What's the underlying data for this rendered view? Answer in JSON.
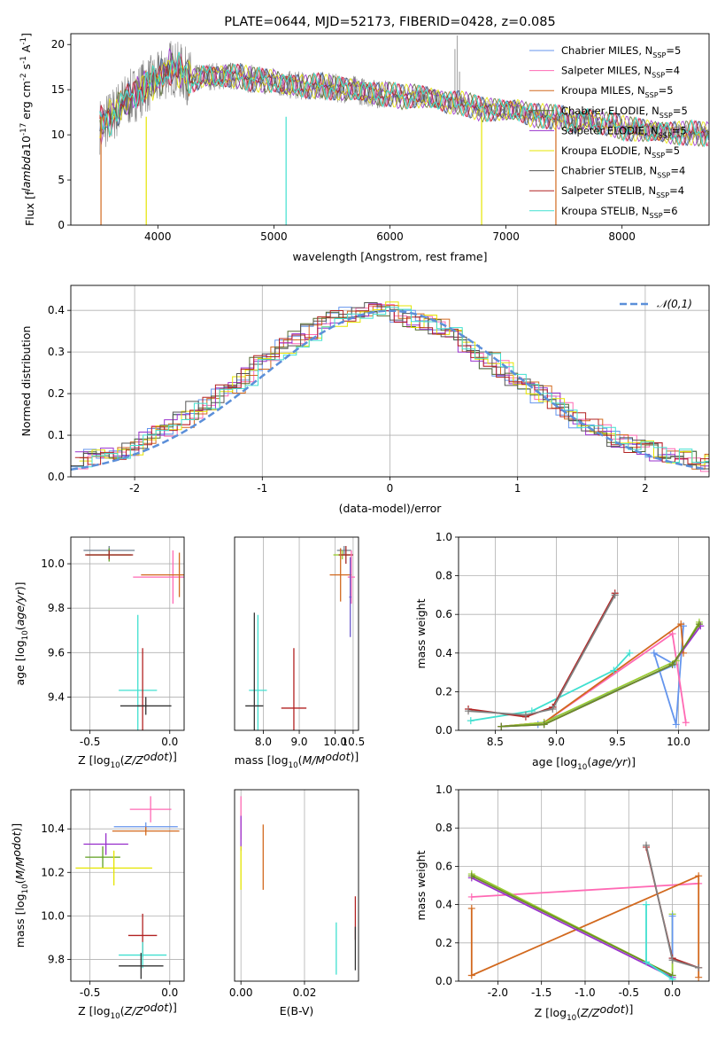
{
  "chart_data": [
    {
      "type": "line",
      "title": "PLATE=0644, MJD=52173, FIBERID=0428, z=0.085",
      "xlabel": "wavelength [Angstrom, rest frame]",
      "ylabel": "Flux [f$_\\lambda$10$^{-17}$ erg cm$^{-2}$ s$^{-1}$ A$^{-1}$]",
      "xlim": [
        3250,
        8750
      ],
      "ylim": [
        0,
        21.2
      ],
      "xticks": [
        4000,
        5000,
        6000,
        7000,
        8000
      ],
      "yticks": [
        0,
        5,
        10,
        15,
        20
      ],
      "series": [
        {
          "name": "Chabrier MILES, N$_{SSP}$=5"
        },
        {
          "name": "Salpeter MILES, N$_{SSP}$=4"
        },
        {
          "name": "Kroupa MILES, N$_{SSP}$=5"
        },
        {
          "name": "Chabrier ELODIE, N$_{SSP}$=5"
        },
        {
          "name": "Salpeter ELODIE, N$_{SSP}$=5"
        },
        {
          "name": "Kroupa ELODIE, N$_{SSP}$=5"
        },
        {
          "name": "Chabrier STELIB, N$_{SSP}$=4"
        },
        {
          "name": "Salpeter STELIB, N$_{SSP}$=4"
        },
        {
          "name": "Kroupa STELIB, N$_{SSP}$=6"
        }
      ],
      "continuum": [
        [
          3500,
          11
        ],
        [
          3600,
          12
        ],
        [
          3700,
          13.5
        ],
        [
          3800,
          14.5
        ],
        [
          3900,
          15.5
        ],
        [
          4000,
          16
        ],
        [
          4100,
          17.5
        ],
        [
          4200,
          17
        ],
        [
          4300,
          16
        ],
        [
          4400,
          16.5
        ],
        [
          4500,
          16.5
        ],
        [
          4600,
          16.5
        ],
        [
          4700,
          16.5
        ],
        [
          4800,
          16.2
        ],
        [
          4900,
          16
        ],
        [
          5000,
          16
        ],
        [
          5100,
          15.5
        ],
        [
          5200,
          15.5
        ],
        [
          5300,
          15.3
        ],
        [
          5400,
          15.5
        ],
        [
          5500,
          15.2
        ],
        [
          5600,
          15.1
        ],
        [
          5700,
          15
        ],
        [
          5800,
          14.7
        ],
        [
          5900,
          14.5
        ],
        [
          6000,
          14.5
        ],
        [
          6100,
          14.2
        ],
        [
          6200,
          14.3
        ],
        [
          6300,
          14.2
        ],
        [
          6400,
          14
        ],
        [
          6500,
          13.5
        ],
        [
          6600,
          13.6
        ],
        [
          6700,
          13.2
        ],
        [
          6800,
          12.8
        ],
        [
          6900,
          12.8
        ],
        [
          7000,
          12.7
        ],
        [
          7100,
          12.8
        ],
        [
          7200,
          12.2
        ],
        [
          7300,
          12.1
        ],
        [
          7400,
          12
        ],
        [
          7500,
          11.9
        ],
        [
          7600,
          11.3
        ],
        [
          7700,
          11.8
        ],
        [
          7800,
          11.3
        ],
        [
          7900,
          11.2
        ],
        [
          8000,
          10.8
        ],
        [
          8100,
          10.6
        ],
        [
          8200,
          10.5
        ],
        [
          8300,
          10.4
        ],
        [
          8400,
          10.2
        ],
        [
          8500,
          10.2
        ],
        [
          8600,
          10.2
        ],
        [
          8700,
          10.1
        ]
      ]
    },
    {
      "type": "line",
      "xlabel": "(data-model)/error",
      "ylabel": "Normed distribution",
      "xlim": [
        -2.5,
        2.5
      ],
      "ylim": [
        0,
        0.46
      ],
      "xticks": [
        -2,
        -1,
        0,
        1,
        2
      ],
      "yticks": [
        0.0,
        0.1,
        0.2,
        0.3,
        0.4
      ],
      "legend": "$\\mathcal{N}(0,1)$",
      "gaussian": {
        "mu": 0,
        "sigma": 1
      },
      "hist_base": [
        0.04,
        0.045,
        0.05,
        0.06,
        0.07,
        0.09,
        0.11,
        0.12,
        0.14,
        0.16,
        0.18,
        0.2,
        0.22,
        0.24,
        0.27,
        0.29,
        0.31,
        0.33,
        0.35,
        0.37,
        0.38,
        0.39,
        0.39,
        0.4,
        0.4,
        0.39,
        0.38,
        0.37,
        0.36,
        0.34,
        0.32,
        0.3,
        0.28,
        0.26,
        0.24,
        0.22,
        0.2,
        0.18,
        0.16,
        0.14,
        0.12,
        0.11,
        0.09,
        0.08,
        0.07,
        0.06,
        0.05,
        0.045,
        0.04,
        0.035
      ]
    },
    {
      "type": "scatter",
      "xlabel": "Z [log$_{10}$($Z/Z_\\odot$)]",
      "ylabel": "age  [log$_{10}$($age/yr$)]",
      "xlim": [
        -0.62,
        0.09
      ],
      "ylim": [
        9.25,
        10.12
      ],
      "xticks": [
        -0.5,
        0.0
      ],
      "yticks": [
        9.4,
        9.6,
        9.8,
        10.0
      ],
      "points": [
        {
          "c": "#708090",
          "x": -0.38,
          "xerr": 0.16,
          "y": 10.06,
          "yerr": 0.02
        },
        {
          "c": "#5f9f1f",
          "x": -0.38,
          "xerr": 0.14,
          "y": 10.04,
          "yerr": 0.03
        },
        {
          "c": "#a52a2a",
          "x": -0.38,
          "xerr": 0.15,
          "y": 10.04,
          "yerr": 0.02
        },
        {
          "c": "#ff69b4",
          "x": 0.02,
          "xerr": 0.25,
          "y": 9.94,
          "yerr": 0.12
        },
        {
          "c": "#d2691e",
          "x": 0.06,
          "xerr": 0.24,
          "y": 9.95,
          "yerr": 0.1
        },
        {
          "c": "#40e0d0",
          "x": -0.2,
          "xerr": 0.12,
          "y": 9.43,
          "yerr": 0.34
        },
        {
          "c": "#b22222",
          "x": -0.17,
          "xerr": 0.03,
          "y": 9.36,
          "yerr": 0.26
        },
        {
          "c": "#333333",
          "x": -0.15,
          "xerr": 0.16,
          "y": 9.36,
          "yerr": 0.04
        }
      ]
    },
    {
      "type": "scatter",
      "xlabel": "mass [log$_{10}$($M/M_\\odot$)]",
      "xlim": [
        7.2,
        10.65
      ],
      "ylim": [
        9.25,
        10.12
      ],
      "xticks": [
        8.0,
        9.0,
        10.0,
        10.5
      ],
      "xticklabels": [
        "",
        "",
        "",
        ""
      ],
      "xtickdisplay": [
        "",
        "",
        "",
        ""
      ],
      "points": [
        {
          "c": "#708090",
          "x": 10.25,
          "xerr": 0.2,
          "y": 10.06,
          "yerr": 0.02
        },
        {
          "c": "#9acd32",
          "x": 10.2,
          "xerr": 0.25,
          "y": 10.04,
          "yerr": 0.02
        },
        {
          "c": "#a52a2a",
          "x": 10.3,
          "xerr": 0.2,
          "y": 10.04,
          "yerr": 0.04
        },
        {
          "c": "#ff69b4",
          "x": 10.45,
          "xerr": 0.1,
          "y": 9.94,
          "yerr": 0.12
        },
        {
          "c": "#d2691e",
          "x": 10.15,
          "xerr": 0.3,
          "y": 9.95,
          "yerr": 0.12
        },
        {
          "c": "#6a5acd",
          "x": 10.42,
          "xerr": 0.03,
          "y": 9.85,
          "yerr": 0.18
        },
        {
          "c": "#40e0d0",
          "x": 7.85,
          "xerr": 0.25,
          "y": 9.43,
          "yerr": 0.34
        },
        {
          "c": "#b22222",
          "x": 8.85,
          "xerr": 0.35,
          "y": 9.35,
          "yerr": 0.27
        },
        {
          "c": "#333333",
          "x": 7.75,
          "xerr": 0.25,
          "y": 9.36,
          "yerr": 0.42
        }
      ]
    },
    {
      "type": "line",
      "xlabel": "age  [log$_{10}$($age/yr$)]",
      "ylabel": "mass weight",
      "xlim": [
        8.2,
        10.25
      ],
      "ylim": [
        0,
        1
      ],
      "xticks": [
        8.5,
        9.0,
        9.5,
        10.0
      ],
      "yticks": [
        0.0,
        0.2,
        0.4,
        0.6,
        0.8,
        1.0
      ],
      "series": [
        {
          "c": "#6495ed",
          "pts": [
            [
              8.55,
              0.02
            ],
            [
              8.85,
              0.03
            ],
            [
              9.97,
              0.34
            ],
            [
              9.8,
              0.4
            ],
            [
              9.98,
              0.03
            ],
            [
              10.04,
              0.54
            ]
          ]
        },
        {
          "c": "#ff69b4",
          "pts": [
            [
              8.55,
              0.02
            ],
            [
              8.9,
              0.04
            ],
            [
              9.95,
              0.5
            ],
            [
              10.06,
              0.04
            ]
          ]
        },
        {
          "c": "#d2691e",
          "pts": [
            [
              8.55,
              0.02
            ],
            [
              8.9,
              0.04
            ],
            [
              10.02,
              0.55
            ],
            [
              10.04,
              0.4
            ]
          ]
        },
        {
          "c": "#40e0d0",
          "pts": [
            [
              8.3,
              0.05
            ],
            [
              8.8,
              0.1
            ],
            [
              9.47,
              0.31
            ],
            [
              9.6,
              0.4
            ]
          ]
        },
        {
          "c": "#b22222",
          "pts": [
            [
              8.28,
              0.11
            ],
            [
              8.75,
              0.07
            ],
            [
              8.97,
              0.12
            ],
            [
              9.48,
              0.71
            ]
          ]
        },
        {
          "c": "#808080",
          "pts": [
            [
              8.28,
              0.1
            ],
            [
              8.75,
              0.08
            ],
            [
              8.97,
              0.11
            ],
            [
              9.48,
              0.7
            ]
          ]
        },
        {
          "c": "#9acd32",
          "pts": [
            [
              8.55,
              0.02
            ],
            [
              8.9,
              0.04
            ],
            [
              9.98,
              0.36
            ],
            [
              10.17,
              0.56
            ]
          ]
        },
        {
          "c": "#9932cc",
          "pts": [
            [
              8.55,
              0.02
            ],
            [
              8.9,
              0.03
            ],
            [
              9.95,
              0.34
            ],
            [
              10.18,
              0.54
            ]
          ]
        },
        {
          "c": "#6b8e23",
          "pts": [
            [
              8.55,
              0.02
            ],
            [
              8.9,
              0.03
            ],
            [
              9.95,
              0.34
            ],
            [
              10.17,
              0.55
            ]
          ]
        }
      ]
    },
    {
      "type": "scatter",
      "xlabel": "Z [log$_{10}$($Z/Z_\\odot$)]",
      "ylabel": "mass [log$_{10}$($M/M_\\odot$)]",
      "xlim": [
        -0.62,
        0.09
      ],
      "ylim": [
        9.7,
        10.58
      ],
      "xticks": [
        -0.5,
        0.0
      ],
      "yticks": [
        9.8,
        10.0,
        10.2,
        10.4
      ],
      "points": [
        {
          "c": "#ff69b4",
          "x": -0.12,
          "xerr": 0.13,
          "y": 10.49,
          "yerr": 0.06
        },
        {
          "c": "#6495ed",
          "x": -0.15,
          "xerr": 0.2,
          "y": 10.41,
          "yerr": 0.02
        },
        {
          "c": "#d2691e",
          "x": -0.15,
          "xerr": 0.21,
          "y": 10.39,
          "yerr": 0.02
        },
        {
          "c": "#9932cc",
          "x": -0.4,
          "xerr": 0.14,
          "y": 10.33,
          "yerr": 0.05
        },
        {
          "c": "#5f9f1f",
          "x": -0.42,
          "xerr": 0.11,
          "y": 10.27,
          "yerr": 0.05
        },
        {
          "c": "#e5e500",
          "x": -0.35,
          "xerr": 0.24,
          "y": 10.22,
          "yerr": 0.08
        },
        {
          "c": "#b22222",
          "x": -0.17,
          "xerr": 0.09,
          "y": 9.91,
          "yerr": 0.1
        },
        {
          "c": "#40e0d0",
          "x": -0.17,
          "xerr": 0.15,
          "y": 9.82,
          "yerr": 0.06
        },
        {
          "c": "#333333",
          "x": -0.18,
          "xerr": 0.14,
          "y": 9.77,
          "yerr": 0.06
        }
      ]
    },
    {
      "type": "scatter",
      "xlabel": "E(B-V)",
      "xlim": [
        -0.002,
        0.037
      ],
      "ylim": [
        9.7,
        10.58
      ],
      "xticks": [
        0.0,
        0.02
      ],
      "points": [
        {
          "c": "#ff69b4",
          "x": 0.0,
          "y": 10.45,
          "yerr": 0.1
        },
        {
          "c": "#9932cc",
          "x": 0.0,
          "y": 10.38,
          "yerr": 0.08
        },
        {
          "c": "#e5e500",
          "x": 0.0,
          "y": 10.22,
          "yerr": 0.1
        },
        {
          "c": "#d2691e",
          "x": 0.007,
          "y": 10.27,
          "yerr": 0.15
        },
        {
          "c": "#40e0d0",
          "x": 0.03,
          "y": 9.85,
          "yerr": 0.12
        },
        {
          "c": "#b22222",
          "x": 0.036,
          "y": 9.99,
          "yerr": 0.1
        },
        {
          "c": "#333333",
          "x": 0.036,
          "y": 9.85,
          "yerr": 0.1
        }
      ]
    },
    {
      "type": "line",
      "xlabel": "Z [log$_{10}$($Z/Z_\\odot$)]",
      "ylabel": "mass weight",
      "xlim": [
        -2.45,
        0.42
      ],
      "ylim": [
        0,
        1
      ],
      "xticks": [
        -2.0,
        -1.5,
        -1.0,
        -0.5,
        0.0
      ],
      "yticks": [
        0.0,
        0.2,
        0.4,
        0.6,
        0.8,
        1.0
      ],
      "series": [
        {
          "c": "#ff69b4",
          "pts": [
            [
              -2.3,
              0.44
            ],
            [
              0.3,
              0.51
            ]
          ]
        },
        {
          "c": "#d2691e",
          "pts": [
            [
              -2.3,
              0.38
            ],
            [
              -2.3,
              0.03
            ],
            [
              0.3,
              0.55
            ],
            [
              0.3,
              0.02
            ]
          ]
        },
        {
          "c": "#9acd32",
          "pts": [
            [
              -2.3,
              0.56
            ],
            [
              0,
              0.03
            ],
            [
              0,
              0.35
            ]
          ]
        },
        {
          "c": "#9932cc",
          "pts": [
            [
              -2.3,
              0.54
            ],
            [
              0,
              0.02
            ]
          ]
        },
        {
          "c": "#6b8e23",
          "pts": [
            [
              -2.3,
              0.55
            ],
            [
              0,
              0.03
            ]
          ]
        },
        {
          "c": "#40e0d0",
          "pts": [
            [
              -0.3,
              0.4
            ],
            [
              -0.3,
              0.1
            ],
            [
              0,
              0.01
            ]
          ]
        },
        {
          "c": "#6495ed",
          "pts": [
            [
              0,
              0.34
            ],
            [
              0,
              0.12
            ]
          ]
        },
        {
          "c": "#b22222",
          "pts": [
            [
              -0.3,
              0.7
            ],
            [
              0,
              0.12
            ],
            [
              0.3,
              0.07
            ]
          ]
        },
        {
          "c": "#808080",
          "pts": [
            [
              -0.3,
              0.71
            ],
            [
              0,
              0.11
            ],
            [
              0.3,
              0.07
            ]
          ]
        }
      ]
    }
  ],
  "colors": {
    "axes": "#000000",
    "grid": "#b0b0b0",
    "gaussian": "#5b8fd9",
    "palette": [
      "#6495ed",
      "#ff69b4",
      "#d2691e",
      "#556b2f",
      "#9932cc",
      "#e5e500",
      "#333333",
      "#b22222",
      "#40e0d0"
    ]
  }
}
